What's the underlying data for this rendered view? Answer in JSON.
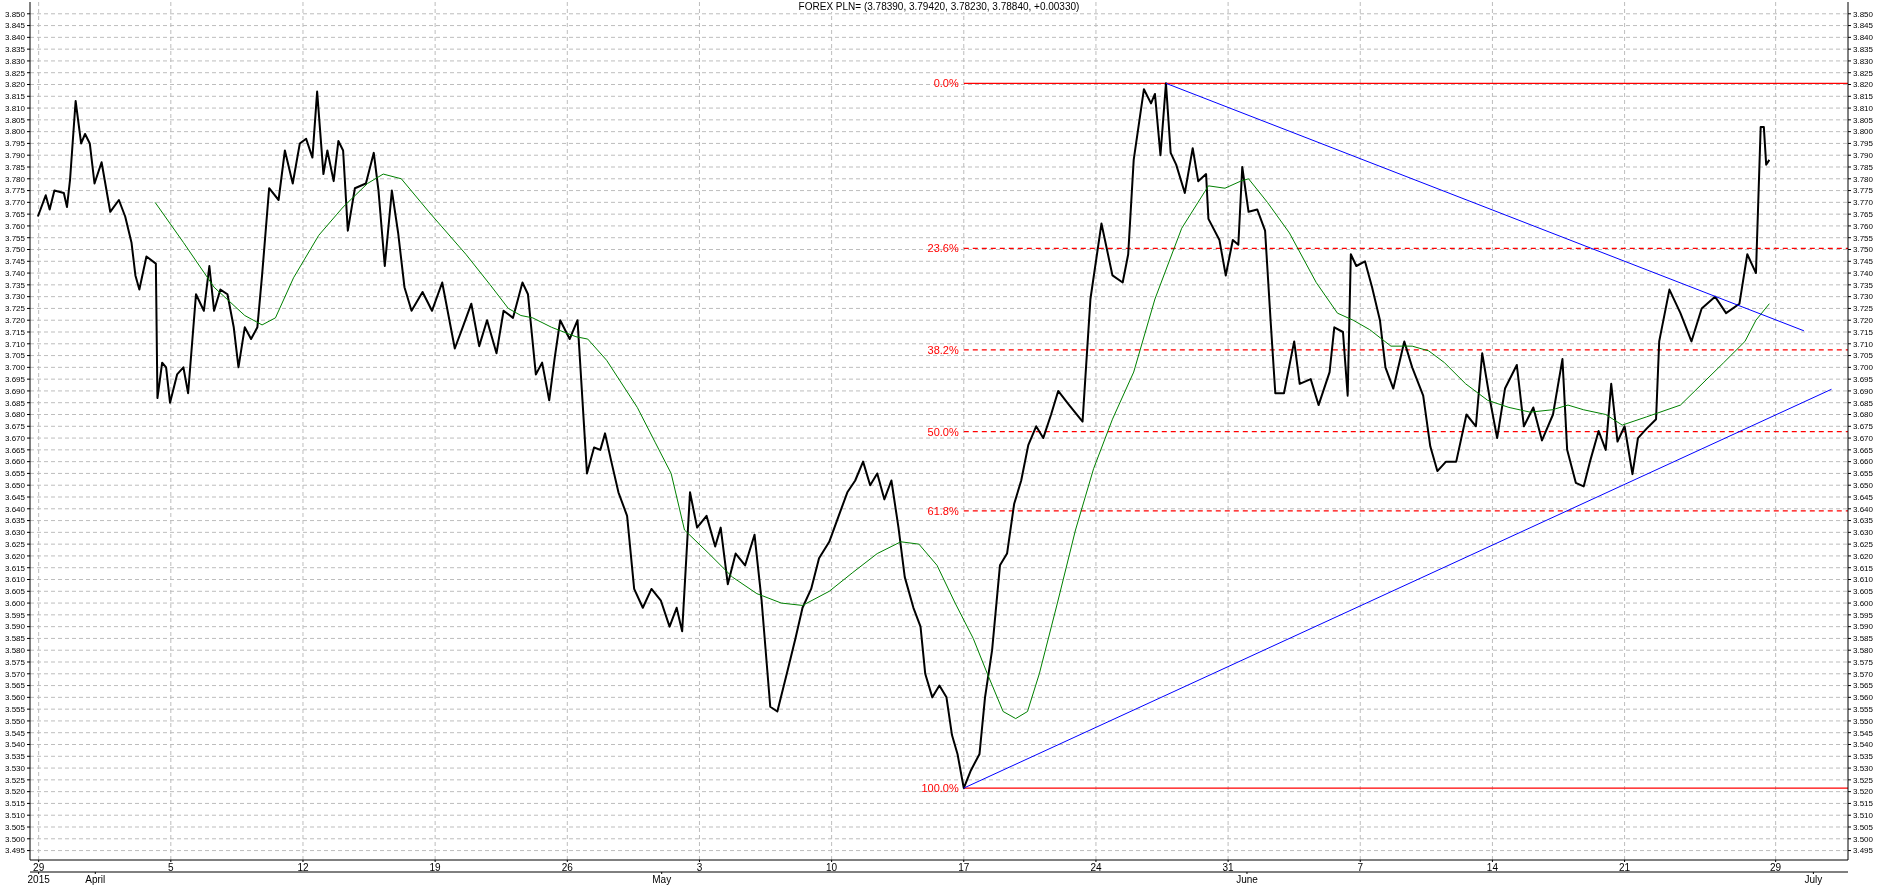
{
  "chart_data": {
    "type": "line",
    "title": "FOREX PLN= (3.78390, 3.79420, 3.78230, 3.78840, +0.00330)",
    "xlim": [
      "2015-03-28T13:00",
      "2015-07-02T20:00"
    ],
    "xticks": [
      {
        "value": "2015-03-29",
        "label": "29"
      },
      {
        "value": "2015-04-05",
        "label": "5"
      },
      {
        "value": "2015-04-12",
        "label": "12"
      },
      {
        "value": "2015-04-19",
        "label": "19"
      },
      {
        "value": "2015-04-26",
        "label": "26"
      },
      {
        "value": "2015-05-03",
        "label": "3"
      },
      {
        "value": "2015-05-10",
        "label": "10"
      },
      {
        "value": "2015-05-17",
        "label": "17"
      },
      {
        "value": "2015-05-24",
        "label": "24"
      },
      {
        "value": "2015-05-31",
        "label": "31"
      },
      {
        "value": "2015-06-07",
        "label": "7"
      },
      {
        "value": "2015-06-14",
        "label": "14"
      },
      {
        "value": "2015-06-21",
        "label": "21"
      },
      {
        "value": "2015-06-29",
        "label": "29"
      }
    ],
    "x2lim": [
      "2015-03-28T13:00",
      "2015-07-02T20:00"
    ],
    "x2ticks": [
      {
        "value": "2015-03-29",
        "label": "2015"
      },
      {
        "value": "2015-04-01",
        "label": "April"
      },
      {
        "value": "2015-05-01",
        "label": "May"
      },
      {
        "value": "2015-06-01",
        "label": "June"
      },
      {
        "value": "2015-07-01",
        "label": "July"
      }
    ],
    "ylim": [
      3.491,
      3.855
    ],
    "yticks": [
      {
        "value": 3.495,
        "label": "3.495"
      },
      {
        "value": 3.5,
        "label": "3.500"
      },
      {
        "value": 3.505,
        "label": "3.505"
      },
      {
        "value": 3.51,
        "label": "3.510"
      },
      {
        "value": 3.515,
        "label": "3.515"
      },
      {
        "value": 3.52,
        "label": "3.520"
      },
      {
        "value": 3.525,
        "label": "3.525"
      },
      {
        "value": 3.53,
        "label": "3.530"
      },
      {
        "value": 3.535,
        "label": "3.535"
      },
      {
        "value": 3.54,
        "label": "3.540"
      },
      {
        "value": 3.545,
        "label": "3.545"
      },
      {
        "value": 3.55,
        "label": "3.550"
      },
      {
        "value": 3.555,
        "label": "3.555"
      },
      {
        "value": 3.56,
        "label": "3.560"
      },
      {
        "value": 3.565,
        "label": "3.565"
      },
      {
        "value": 3.57,
        "label": "3.570"
      },
      {
        "value": 3.575,
        "label": "3.575"
      },
      {
        "value": 3.58,
        "label": "3.580"
      },
      {
        "value": 3.585,
        "label": "3.585"
      },
      {
        "value": 3.59,
        "label": "3.590"
      },
      {
        "value": 3.595,
        "label": "3.595"
      },
      {
        "value": 3.6,
        "label": "3.600"
      },
      {
        "value": 3.605,
        "label": "3.605"
      },
      {
        "value": 3.61,
        "label": "3.610"
      },
      {
        "value": 3.615,
        "label": "3.615"
      },
      {
        "value": 3.62,
        "label": "3.620"
      },
      {
        "value": 3.625,
        "label": "3.625"
      },
      {
        "value": 3.63,
        "label": "3.630"
      },
      {
        "value": 3.635,
        "label": "3.635"
      },
      {
        "value": 3.64,
        "label": "3.640"
      },
      {
        "value": 3.645,
        "label": "3.645"
      },
      {
        "value": 3.65,
        "label": "3.650"
      },
      {
        "value": 3.655,
        "label": "3.655"
      },
      {
        "value": 3.66,
        "label": "3.660"
      },
      {
        "value": 3.665,
        "label": "3.665"
      },
      {
        "value": 3.67,
        "label": "3.670"
      },
      {
        "value": 3.675,
        "label": "3.675"
      },
      {
        "value": 3.68,
        "label": "3.680"
      },
      {
        "value": 3.685,
        "label": "3.685"
      },
      {
        "value": 3.69,
        "label": "3.690"
      },
      {
        "value": 3.695,
        "label": "3.695"
      },
      {
        "value": 3.7,
        "label": "3.700"
      },
      {
        "value": 3.705,
        "label": "3.705"
      },
      {
        "value": 3.71,
        "label": "3.710"
      },
      {
        "value": 3.715,
        "label": "3.715"
      },
      {
        "value": 3.72,
        "label": "3.720"
      },
      {
        "value": 3.725,
        "label": "3.725"
      },
      {
        "value": 3.73,
        "label": "3.730"
      },
      {
        "value": 3.735,
        "label": "3.735"
      },
      {
        "value": 3.74,
        "label": "3.740"
      },
      {
        "value": 3.745,
        "label": "3.745"
      },
      {
        "value": 3.75,
        "label": "3.750"
      },
      {
        "value": 3.755,
        "label": "3.755"
      },
      {
        "value": 3.76,
        "label": "3.760"
      },
      {
        "value": 3.765,
        "label": "3.765"
      },
      {
        "value": 3.77,
        "label": "3.770"
      },
      {
        "value": 3.775,
        "label": "3.775"
      },
      {
        "value": 3.78,
        "label": "3.780"
      },
      {
        "value": 3.785,
        "label": "3.785"
      },
      {
        "value": 3.79,
        "label": "3.790"
      },
      {
        "value": 3.795,
        "label": "3.795"
      },
      {
        "value": 3.8,
        "label": "3.800"
      },
      {
        "value": 3.805,
        "label": "3.805"
      },
      {
        "value": 3.81,
        "label": "3.810"
      },
      {
        "value": 3.815,
        "label": "3.815"
      },
      {
        "value": 3.82,
        "label": "3.820"
      },
      {
        "value": 3.825,
        "label": "3.825"
      },
      {
        "value": 3.83,
        "label": "3.830"
      },
      {
        "value": 3.835,
        "label": "3.835"
      },
      {
        "value": 3.84,
        "label": "3.840"
      },
      {
        "value": 3.845,
        "label": "3.845"
      },
      {
        "value": 3.85,
        "label": "3.850"
      }
    ],
    "y2lim": [
      3.491,
      3.855
    ],
    "y2ticks": [
      {
        "value": 3.495,
        "label": "3.495"
      },
      {
        "value": 3.5,
        "label": "3.500"
      },
      {
        "value": 3.505,
        "label": "3.505"
      },
      {
        "value": 3.51,
        "label": "3.510"
      },
      {
        "value": 3.515,
        "label": "3.515"
      },
      {
        "value": 3.52,
        "label": "3.520"
      },
      {
        "value": 3.525,
        "label": "3.525"
      },
      {
        "value": 3.53,
        "label": "3.530"
      },
      {
        "value": 3.535,
        "label": "3.535"
      },
      {
        "value": 3.54,
        "label": "3.540"
      },
      {
        "value": 3.545,
        "label": "3.545"
      },
      {
        "value": 3.55,
        "label": "3.550"
      },
      {
        "value": 3.555,
        "label": "3.555"
      },
      {
        "value": 3.56,
        "label": "3.560"
      },
      {
        "value": 3.565,
        "label": "3.565"
      },
      {
        "value": 3.57,
        "label": "3.570"
      },
      {
        "value": 3.575,
        "label": "3.575"
      },
      {
        "value": 3.58,
        "label": "3.580"
      },
      {
        "value": 3.585,
        "label": "3.585"
      },
      {
        "value": 3.59,
        "label": "3.590"
      },
      {
        "value": 3.595,
        "label": "3.595"
      },
      {
        "value": 3.6,
        "label": "3.600"
      },
      {
        "value": 3.605,
        "label": "3.605"
      },
      {
        "value": 3.61,
        "label": "3.610"
      },
      {
        "value": 3.615,
        "label": "3.615"
      },
      {
        "value": 3.62,
        "label": "3.620"
      },
      {
        "value": 3.625,
        "label": "3.625"
      },
      {
        "value": 3.63,
        "label": "3.630"
      },
      {
        "value": 3.635,
        "label": "3.635"
      },
      {
        "value": 3.64,
        "label": "3.640"
      },
      {
        "value": 3.645,
        "label": "3.645"
      },
      {
        "value": 3.65,
        "label": "3.650"
      },
      {
        "value": 3.655,
        "label": "3.655"
      },
      {
        "value": 3.66,
        "label": "3.660"
      },
      {
        "value": 3.665,
        "label": "3.665"
      },
      {
        "value": 3.67,
        "label": "3.670"
      },
      {
        "value": 3.675,
        "label": "3.675"
      },
      {
        "value": 3.68,
        "label": "3.680"
      },
      {
        "value": 3.685,
        "label": "3.685"
      },
      {
        "value": 3.69,
        "label": "3.690"
      },
      {
        "value": 3.695,
        "label": "3.695"
      },
      {
        "value": 3.7,
        "label": "3.700"
      },
      {
        "value": 3.705,
        "label": "3.705"
      },
      {
        "value": 3.71,
        "label": "3.710"
      },
      {
        "value": 3.715,
        "label": "3.715"
      },
      {
        "value": 3.72,
        "label": "3.720"
      },
      {
        "value": 3.725,
        "label": "3.725"
      },
      {
        "value": 3.73,
        "label": "3.730"
      },
      {
        "value": 3.735,
        "label": "3.735"
      },
      {
        "value": 3.74,
        "label": "3.740"
      },
      {
        "value": 3.745,
        "label": "3.745"
      },
      {
        "value": 3.75,
        "label": "3.750"
      },
      {
        "value": 3.755,
        "label": "3.755"
      },
      {
        "value": 3.76,
        "label": "3.760"
      },
      {
        "value": 3.765,
        "label": "3.765"
      },
      {
        "value": 3.77,
        "label": "3.770"
      },
      {
        "value": 3.775,
        "label": "3.775"
      },
      {
        "value": 3.78,
        "label": "3.780"
      },
      {
        "value": 3.785,
        "label": "3.785"
      },
      {
        "value": 3.79,
        "label": "3.790"
      },
      {
        "value": 3.795,
        "label": "3.795"
      },
      {
        "value": 3.8,
        "label": "3.800"
      },
      {
        "value": 3.805,
        "label": "3.805"
      },
      {
        "value": 3.81,
        "label": "3.810"
      },
      {
        "value": 3.815,
        "label": "3.815"
      },
      {
        "value": 3.82,
        "label": "3.820"
      },
      {
        "value": 3.825,
        "label": "3.825"
      },
      {
        "value": 3.83,
        "label": "3.830"
      },
      {
        "value": 3.835,
        "label": "3.835"
      },
      {
        "value": 3.84,
        "label": "3.840"
      },
      {
        "value": 3.845,
        "label": "3.845"
      },
      {
        "value": 3.85,
        "label": "3.850"
      }
    ],
    "grid": true,
    "marker": "none",
    "line_style": "solid",
    "series": [
      {
        "color": "#000000",
        "x": [
          "2015-03-28T23:00",
          "2015-03-29T09:00",
          "2015-03-29T14:00",
          "2015-03-29T20:00",
          "2015-03-30T08:00",
          "2015-03-30T12:00",
          "2015-03-30T16:00",
          "2015-03-30T23:00",
          "2015-03-31T06:00",
          "2015-03-31T11:00",
          "2015-03-31T17:00",
          "2015-03-31T23:00",
          "2015-04-01T08:00",
          "2015-04-01T19:00",
          "2015-04-02T06:00",
          "2015-04-02T14:00",
          "2015-04-02T22:00",
          "2015-04-03T03:00",
          "2015-04-03T08:00",
          "2015-04-03T17:00",
          "2015-04-04T05:00",
          "2015-04-04T07:00",
          "2015-04-04T13:00",
          "2015-04-04T18:00",
          "2015-04-04T23:00",
          "2015-04-05T08:00",
          "2015-04-05T16:00",
          "2015-04-05T22:00",
          "2015-04-06T08:00",
          "2015-04-06T18:00",
          "2015-04-07T01:00",
          "2015-04-07T07:00",
          "2015-04-07T15:00",
          "2015-04-08T00:00",
          "2015-04-08T08:00",
          "2015-04-08T14:00",
          "2015-04-08T22:00",
          "2015-04-09T06:00",
          "2015-04-09T14:00",
          "2015-04-09T20:00",
          "2015-04-10T05:00",
          "2015-04-10T17:00",
          "2015-04-11T01:00",
          "2015-04-11T11:00",
          "2015-04-11T20:00",
          "2015-04-12T04:00",
          "2015-04-12T12:00",
          "2015-04-12T18:00",
          "2015-04-13T02:00",
          "2015-04-13T07:00",
          "2015-04-13T15:00",
          "2015-04-13T21:00",
          "2015-04-14T03:00",
          "2015-04-14T09:00",
          "2015-04-14T18:00",
          "2015-04-15T08:00",
          "2015-04-15T18:00",
          "2015-04-16T00:00",
          "2015-04-16T08:00",
          "2015-04-16T17:00",
          "2015-04-17T01:00",
          "2015-04-17T09:00",
          "2015-04-17T18:00",
          "2015-04-18T08:00",
          "2015-04-18T20:00",
          "2015-04-19T09:00",
          "2015-04-20T01:00",
          "2015-04-20T11:00",
          "2015-04-20T22:00",
          "2015-04-21T08:00",
          "2015-04-21T18:00",
          "2015-04-22T06:00",
          "2015-04-22T15:00",
          "2015-04-23T03:00",
          "2015-04-23T15:00",
          "2015-04-23T22:00",
          "2015-04-24T08:00",
          "2015-04-24T16:00",
          "2015-04-25T01:00",
          "2015-04-25T08:00",
          "2015-04-25T15:00",
          "2015-04-26T03:00",
          "2015-04-26T13:00",
          "2015-04-27T01:00",
          "2015-04-27T10:00",
          "2015-04-27T18:00",
          "2015-04-28T00:00",
          "2015-04-28T08:00",
          "2015-04-28T17:00",
          "2015-04-29T04:00",
          "2015-04-29T13:00",
          "2015-04-30T00:00",
          "2015-04-30T11:00",
          "2015-04-30T23:00",
          "2015-05-01T10:00",
          "2015-05-01T19:00",
          "2015-05-02T02:00",
          "2015-05-02T12:00",
          "2015-05-02T21:00",
          "2015-05-03T09:00",
          "2015-05-03T20:00",
          "2015-05-04T03:00",
          "2015-05-04T12:00",
          "2015-05-04T22:00",
          "2015-05-05T10:00",
          "2015-05-05T22:00",
          "2015-05-06T07:00",
          "2015-05-06T18:00",
          "2015-05-07T03:00",
          "2015-05-07T15:00",
          "2015-05-08T02:00",
          "2015-05-08T11:00",
          "2015-05-08T22:00",
          "2015-05-09T08:00",
          "2015-05-09T21:00",
          "2015-05-10T09:00",
          "2015-05-10T20:00",
          "2015-05-11T06:00",
          "2015-05-11T16:00",
          "2015-05-12T01:00",
          "2015-05-12T10:00",
          "2015-05-12T19:00",
          "2015-05-13T04:00",
          "2015-05-13T13:00",
          "2015-05-13T21:00",
          "2015-05-14T08:00",
          "2015-05-14T17:00",
          "2015-05-14T23:00",
          "2015-05-15T08:00",
          "2015-05-15T17:00",
          "2015-05-16T02:00",
          "2015-05-16T09:00",
          "2015-05-16T16:00",
          "2015-05-17T00:00",
          "2015-05-17T09:00",
          "2015-05-17T20:00",
          "2015-05-18T03:00",
          "2015-05-18T12:00",
          "2015-05-18T22:00",
          "2015-05-19T07:00",
          "2015-05-19T16:00",
          "2015-05-20T01:00",
          "2015-05-20T10:00",
          "2015-05-20T20:00",
          "2015-05-21T05:00",
          "2015-05-21T15:00",
          "2015-05-22T00:00",
          "2015-05-22T14:00",
          "2015-05-23T07:00",
          "2015-05-23T11:00",
          "2015-05-23T17:00",
          "2015-05-24T07:00",
          "2015-05-24T21:00",
          "2015-05-25T10:00",
          "2015-05-25T17:00",
          "2015-05-26T00:00",
          "2015-05-26T13:00",
          "2015-05-26T22:00",
          "2015-05-27T03:00",
          "2015-05-27T10:00",
          "2015-05-27T17:00",
          "2015-05-27T23:00",
          "2015-05-28T06:00",
          "2015-05-28T17:00",
          "2015-05-29T03:00",
          "2015-05-29T10:00",
          "2015-05-29T20:00",
          "2015-05-29T23:00",
          "2015-05-30T13:00",
          "2015-05-30T21:00",
          "2015-05-31T06:00",
          "2015-05-31T13:00",
          "2015-05-31T18:00",
          "2015-06-01T02:00",
          "2015-06-01T13:00",
          "2015-06-01T23:00",
          "2015-06-02T06:00",
          "2015-06-02T12:00",
          "2015-06-02T23:00",
          "2015-06-03T12:00",
          "2015-06-03T19:00",
          "2015-06-04T09:00",
          "2015-06-04T19:00",
          "2015-06-05T09:00",
          "2015-06-05T15:00",
          "2015-06-06T02:00",
          "2015-06-06T08:00",
          "2015-06-06T12:00",
          "2015-06-06T19:00",
          "2015-06-07T06:00",
          "2015-06-07T15:00",
          "2015-06-08T01:00",
          "2015-06-08T08:00",
          "2015-06-08T18:00",
          "2015-06-09T08:00",
          "2015-06-09T18:00",
          "2015-06-10T08:00",
          "2015-06-10T17:00",
          "2015-06-11T02:00",
          "2015-06-11T13:00",
          "2015-06-12T02:00",
          "2015-06-12T15:00",
          "2015-06-13T03:00",
          "2015-06-13T11:00",
          "2015-06-13T21:00",
          "2015-06-14T06:00",
          "2015-06-14T16:00",
          "2015-06-15T07:00",
          "2015-06-15T16:00",
          "2015-06-16T04:00",
          "2015-06-16T15:00",
          "2015-06-17T05:00",
          "2015-06-17T17:00",
          "2015-06-17T23:00",
          "2015-06-18T10:00",
          "2015-06-18T20:00",
          "2015-06-19T04:00",
          "2015-06-19T15:00",
          "2015-06-20T00:00",
          "2015-06-20T07:00",
          "2015-06-20T15:00",
          "2015-06-21T00:00",
          "2015-06-21T10:00",
          "2015-06-21T17:00",
          "2015-06-22T04:00",
          "2015-06-22T16:00",
          "2015-06-22T20:00",
          "2015-06-23T09:00",
          "2015-06-23T23:00",
          "2015-06-24T13:00",
          "2015-06-25T02:00",
          "2015-06-25T19:00",
          "2015-06-26T09:00",
          "2015-06-27T02:00",
          "2015-06-27T12:00",
          "2015-06-27T23:00",
          "2015-06-28T05:00",
          "2015-06-28T09:00",
          "2015-06-28T12:00",
          "2015-06-28T16:00"
        ],
        "values": [
          3.764,
          3.773,
          3.767,
          3.775,
          3.774,
          3.768,
          3.78,
          3.813,
          3.795,
          3.799,
          3.795,
          3.778,
          3.787,
          3.766,
          3.771,
          3.764,
          3.753,
          3.739,
          3.733,
          3.747,
          3.744,
          3.687,
          3.702,
          3.7,
          3.685,
          3.697,
          3.7,
          3.689,
          3.731,
          3.724,
          3.743,
          3.724,
          3.733,
          3.731,
          3.717,
          3.7,
          3.717,
          3.712,
          3.717,
          3.739,
          3.776,
          3.771,
          3.792,
          3.778,
          3.795,
          3.797,
          3.789,
          3.817,
          3.782,
          3.792,
          3.779,
          3.796,
          3.792,
          3.758,
          3.776,
          3.778,
          3.791,
          3.775,
          3.743,
          3.775,
          3.757,
          3.734,
          3.724,
          3.732,
          3.724,
          3.736,
          3.708,
          3.717,
          3.727,
          3.709,
          3.72,
          3.706,
          3.724,
          3.721,
          3.736,
          3.731,
          3.697,
          3.702,
          3.686,
          3.704,
          3.72,
          3.712,
          3.72,
          3.655,
          3.666,
          3.665,
          3.672,
          3.66,
          3.647,
          3.637,
          3.606,
          3.598,
          3.606,
          3.601,
          3.59,
          3.598,
          3.588,
          3.647,
          3.632,
          3.637,
          3.624,
          3.632,
          3.608,
          3.621,
          3.616,
          3.629,
          3.601,
          3.556,
          3.554,
          3.57,
          3.585,
          3.598,
          3.606,
          3.619,
          3.626,
          3.637,
          3.647,
          3.652,
          3.66,
          3.65,
          3.655,
          3.644,
          3.652,
          3.632,
          3.611,
          3.598,
          3.59,
          3.57,
          3.56,
          3.565,
          3.56,
          3.544,
          3.536,
          3.5215,
          3.529,
          3.536,
          3.56,
          3.58,
          3.616,
          3.621,
          3.642,
          3.652,
          3.667,
          3.675,
          3.67,
          3.68,
          3.69,
          3.684,
          3.677,
          3.698,
          3.729,
          3.761,
          3.739,
          3.736,
          3.748,
          3.788,
          3.818,
          3.812,
          3.816,
          3.79,
          3.8205,
          3.791,
          3.786,
          3.774,
          3.793,
          3.779,
          3.782,
          3.763,
          3.754,
          3.739,
          3.754,
          3.752,
          3.785,
          3.766,
          3.767,
          3.758,
          3.72,
          3.689,
          3.689,
          3.711,
          3.693,
          3.695,
          3.684,
          3.698,
          3.717,
          3.715,
          3.688,
          3.748,
          3.743,
          3.745,
          3.734,
          3.72,
          3.7,
          3.691,
          3.711,
          3.7,
          3.688,
          3.6665,
          3.656,
          3.66,
          3.66,
          3.68,
          3.675,
          3.706,
          3.686,
          3.67,
          3.691,
          3.701,
          3.675,
          3.683,
          3.669,
          3.68,
          3.7035,
          3.665,
          3.651,
          3.6495,
          3.66,
          3.673,
          3.665,
          3.693,
          3.6685,
          3.675,
          3.6547,
          3.67,
          3.674,
          3.678,
          3.711,
          3.733,
          3.723,
          3.711,
          3.725,
          3.73,
          3.723,
          3.727,
          3.748,
          3.74,
          3.802,
          3.802,
          3.786,
          3.788
        ]
      },
      {
        "color": "#008000",
        "x": [
          "2015-04-04T04:00",
          "2015-04-05T16:00",
          "2015-04-07T07:00",
          "2015-04-08T22:00",
          "2015-04-09T20:00",
          "2015-04-10T13:00",
          "2015-04-11T12:00",
          "2015-04-12T20:00",
          "2015-04-14T03:00",
          "2015-04-15T10:00",
          "2015-04-16T06:00",
          "2015-04-17T05:00",
          "2015-04-18T16:00",
          "2015-04-20T15:00",
          "2015-04-21T22:00",
          "2015-04-22T21:00",
          "2015-04-23T13:00",
          "2015-04-24T04:00",
          "2015-04-25T04:00",
          "2015-04-26T11:00",
          "2015-04-27T02:00",
          "2015-04-28T02:00",
          "2015-04-29T17:00",
          "2015-04-30T16:00",
          "2015-05-01T12:00",
          "2015-05-02T05:00",
          "2015-05-03T12:00",
          "2015-05-04T18:00",
          "2015-05-06T01:00",
          "2015-05-07T08:00",
          "2015-05-08T11:00",
          "2015-05-09T21:00",
          "2015-05-11T03:00",
          "2015-05-12T10:00",
          "2015-05-13T16:00",
          "2015-05-14T15:00",
          "2015-05-15T14:00",
          "2015-05-16T13:00",
          "2015-05-17T12:00",
          "2015-05-18T06:00",
          "2015-05-19T02:00",
          "2015-05-19T18:00",
          "2015-05-20T09:00",
          "2015-05-21T00:00",
          "2015-05-21T23:00",
          "2015-05-22T22:00",
          "2015-05-23T21:00",
          "2015-05-24T21:00",
          "2015-05-26T00:00",
          "2015-05-27T03:00",
          "2015-05-28T13:00",
          "2015-05-29T23:00",
          "2015-05-30T20:00",
          "2015-05-31T16:00",
          "2015-06-01T02:00",
          "2015-06-02T02:00",
          "2015-06-03T06:00",
          "2015-06-04T16:00",
          "2015-06-05T19:00",
          "2015-06-06T15:00",
          "2015-06-07T12:00",
          "2015-06-08T15:00",
          "2015-06-09T18:00",
          "2015-06-10T15:00",
          "2015-06-11T11:00",
          "2015-06-12T14:00",
          "2015-06-13T18:00",
          "2015-06-14T21:00",
          "2015-06-16T00:00",
          "2015-06-17T04:00",
          "2015-06-18T00:00",
          "2015-06-18T20:00",
          "2015-06-20T00:00",
          "2015-06-20T21:00",
          "2015-06-22T04:00",
          "2015-06-23T23:00",
          "2015-06-26T06:00",
          "2015-06-27T09:00",
          "2015-06-27T23:00",
          "2015-06-28T16:00"
        ],
        "values": [
          3.77,
          3.753,
          3.734,
          3.722,
          3.718,
          3.721,
          3.738,
          3.756,
          3.768,
          3.778,
          3.782,
          3.78,
          3.766,
          3.748,
          3.735,
          3.725,
          3.722,
          3.721,
          3.717,
          3.713,
          3.712,
          3.703,
          3.683,
          3.668,
          3.655,
          3.631,
          3.621,
          3.611,
          3.604,
          3.6,
          3.599,
          3.605,
          3.613,
          3.621,
          3.626,
          3.625,
          3.616,
          3.6,
          3.585,
          3.57,
          3.554,
          3.551,
          3.554,
          3.57,
          3.6,
          3.631,
          3.657,
          3.678,
          3.698,
          3.729,
          3.759,
          3.777,
          3.776,
          3.779,
          3.78,
          3.77,
          3.757,
          3.736,
          3.723,
          3.72,
          3.716,
          3.709,
          3.709,
          3.707,
          3.702,
          3.693,
          3.686,
          3.683,
          3.681,
          3.682,
          3.684,
          3.682,
          3.68,
          3.6755,
          3.679,
          3.684,
          3.702,
          3.711,
          3.72,
          3.727
        ]
      },
      {
        "color": "#0000ff",
        "x": [
          "2015-05-27T17:00",
          "2015-06-30T12:00"
        ],
        "values": [
          3.8205,
          3.7155
        ]
      },
      {
        "color": "#0000ff",
        "x": [
          "2015-05-17T00:00",
          "2015-07-01T23:00"
        ],
        "values": [
          3.5215,
          3.6907
        ]
      }
    ],
    "ref_lines": [
      {
        "axis": "y",
        "value": 3.8205,
        "color": "#ff0000",
        "line_style": "solid"
      },
      {
        "axis": "y",
        "value": 3.7505,
        "color": "#ff0000",
        "line_style": "dashed"
      },
      {
        "axis": "y",
        "value": 3.7074,
        "color": "#ff0000",
        "line_style": "dashed"
      },
      {
        "axis": "y",
        "value": 3.6727,
        "color": "#ff0000",
        "line_style": "dashed"
      },
      {
        "axis": "y",
        "value": 3.6391,
        "color": "#ff0000",
        "line_style": "dashed"
      },
      {
        "axis": "y",
        "value": 3.5215,
        "color": "#ff0000",
        "line_style": "solid"
      }
    ],
    "annotations": [
      {
        "text": "0.0%",
        "x": "2015-05-17T00:00",
        "y": 3.8205
      },
      {
        "text": "23.6%",
        "x": "2015-05-17T00:00",
        "y": 3.7505
      },
      {
        "text": "38.2%",
        "x": "2015-05-17T00:00",
        "y": 3.7074
      },
      {
        "text": "50.0%",
        "x": "2015-05-17T00:00",
        "y": 3.6727
      },
      {
        "text": "61.8%",
        "x": "2015-05-17T00:00",
        "y": 3.6391
      },
      {
        "text": "100.0%",
        "x": "2015-05-17T00:00",
        "y": 3.5215
      }
    ]
  }
}
